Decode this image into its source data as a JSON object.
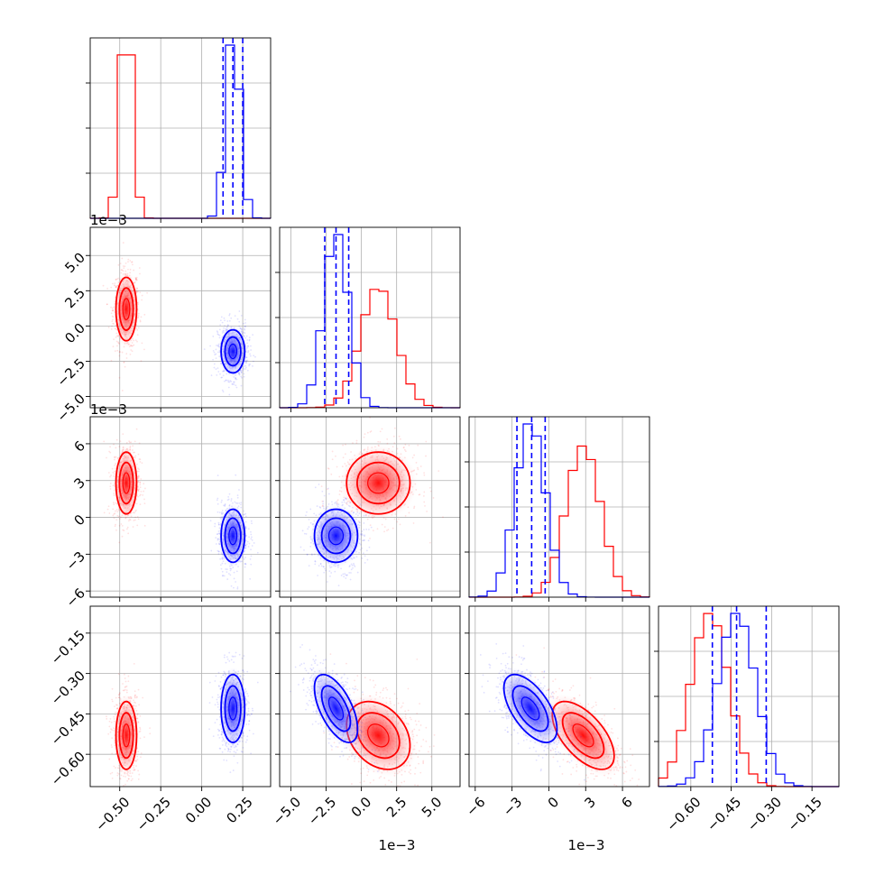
{
  "chart_data": {
    "type": "corner",
    "parameters": [
      {
        "scale_label": "",
        "ticks": [
          -0.5,
          -0.25,
          0.0,
          0.25
        ],
        "tick_labels": [
          "−0.50",
          "−0.25",
          "0.00",
          "0.25"
        ],
        "range": [
          -0.68,
          0.42
        ]
      },
      {
        "scale_label": "1e−3",
        "ticks": [
          -5.0,
          -2.5,
          0.0,
          2.5,
          5.0
        ],
        "tick_labels": [
          "−5.0",
          "−2.5",
          "0.0",
          "2.5",
          "5.0"
        ],
        "range": [
          -5.8,
          7.0
        ]
      },
      {
        "scale_label": "1e−3",
        "ticks": [
          -6,
          -3,
          0,
          3,
          6
        ],
        "tick_labels": [
          "−6",
          "−3",
          "0",
          "3",
          "6"
        ],
        "range": [
          -6.5,
          8.2
        ]
      },
      {
        "scale_label": "",
        "ticks": [
          -0.6,
          -0.45,
          -0.3,
          -0.15
        ],
        "tick_labels": [
          "−0.60",
          "−0.45",
          "−0.30",
          "−0.15"
        ],
        "range": [
          -0.72,
          -0.05
        ]
      }
    ],
    "series": [
      {
        "color": "#ff0000",
        "mean": [
          -0.46,
          1.2,
          2.8,
          -0.53
        ],
        "std": [
          0.035,
          1.25,
          1.4,
          0.07
        ],
        "corr": {
          "2-3": -0.6,
          "1-3": -0.3
        }
      },
      {
        "color": "#0000ff",
        "mean": [
          0.19,
          -1.8,
          -1.5,
          -0.43
        ],
        "std": [
          0.04,
          0.85,
          1.2,
          0.07
        ],
        "corr": {
          "2-3": -0.6,
          "1-3": -0.6
        }
      }
    ],
    "quantile_lines": [
      [
        0.13,
        0.19,
        0.25
      ],
      [
        -2.6,
        -1.8,
        -0.9
      ],
      [
        -2.6,
        -1.4,
        -0.3
      ],
      [
        -0.52,
        -0.43,
        -0.32
      ]
    ],
    "quantile_line_color": "#0000ff",
    "grid": true,
    "colors": {
      "series_a": "#ff0000",
      "series_b": "#0000ff",
      "grid": "#b0b0b0"
    }
  }
}
